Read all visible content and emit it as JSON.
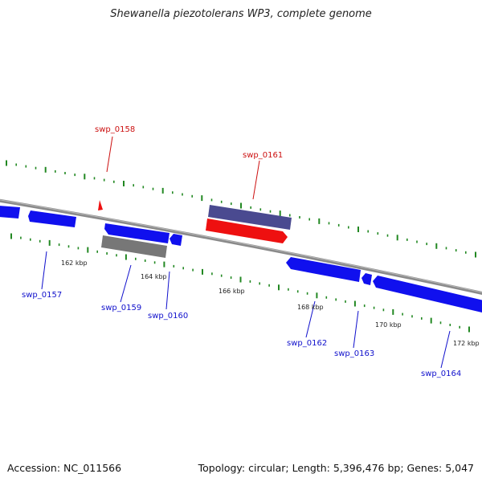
{
  "title": "Shewanella piezotolerans WP3, complete genome",
  "footer": {
    "accession": "Accession: NC_011566",
    "stats": "Topology: circular; Length: 5,396,476 bp; Genes: 5,047"
  },
  "colors": {
    "backbone": "#8a8a8a",
    "tick": "#228822",
    "cds": "#1010ee",
    "rna": "#ee1010",
    "pseudogene": "#777777",
    "other": "#4a4a90",
    "label_blue": "#1010cc",
    "label_red": "#cc1010"
  },
  "scale_labels": [
    "162 kbp",
    "164 kbp",
    "166 kbp",
    "168 kbp",
    "170 kbp",
    "172 kbp"
  ],
  "features": [
    {
      "id": "swp_0157",
      "kind": "cds",
      "strand": "forward"
    },
    {
      "id": "swp_0158",
      "kind": "rna",
      "strand": "forward"
    },
    {
      "id": "swp_0159",
      "kind": "cds",
      "strand": "forward"
    },
    {
      "id": "swp_0160",
      "kind": "cds",
      "strand": "reverse"
    },
    {
      "id": "swp_0161",
      "kind": "other",
      "strand": "forward"
    },
    {
      "id": "swp_0162",
      "kind": "cds",
      "strand": "reverse"
    },
    {
      "id": "swp_0163",
      "kind": "cds",
      "strand": "reverse"
    },
    {
      "id": "swp_0164",
      "kind": "cds",
      "strand": "reverse"
    }
  ]
}
